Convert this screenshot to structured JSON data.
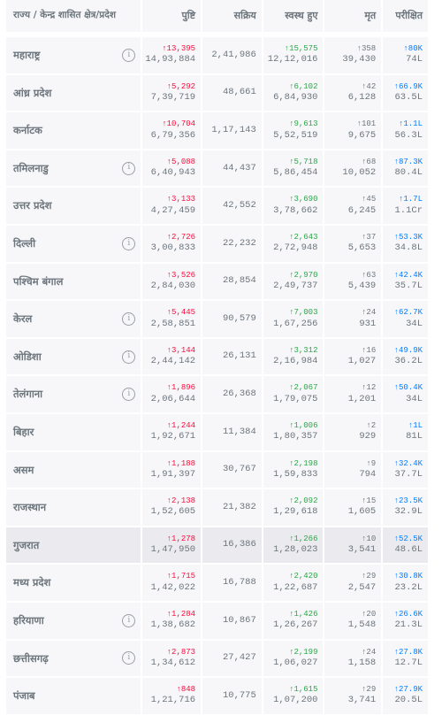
{
  "header": {
    "state": "राज्य / केन्द्र शासित क्षेत्र/प्रदेश",
    "confirmed": "पुष्टि",
    "active": "सक्रिय",
    "recovered": "स्वस्थ हुए",
    "deceased": "मृत",
    "tested": "परीक्षित"
  },
  "rows": [
    {
      "state": "महाराष्ट्र",
      "info": true,
      "conf_d": "↑13,395",
      "conf": "14,93,884",
      "active": "2,41,986",
      "rec_d": "↑15,575",
      "rec": "12,12,016",
      "dec_d": "↑358",
      "dec": "39,430",
      "test_d": "↑80K",
      "test": "74L"
    },
    {
      "state": "आंध्र प्रदेश",
      "info": false,
      "conf_d": "↑5,292",
      "conf": "7,39,719",
      "active": "48,661",
      "rec_d": "↑6,102",
      "rec": "6,84,930",
      "dec_d": "↑42",
      "dec": "6,128",
      "test_d": "↑66.9K",
      "test": "63.5L"
    },
    {
      "state": "कर्नाटक",
      "info": false,
      "conf_d": "↑10,704",
      "conf": "6,79,356",
      "active": "1,17,143",
      "rec_d": "↑9,613",
      "rec": "5,52,519",
      "dec_d": "↑101",
      "dec": "9,675",
      "test_d": "↑1.1L",
      "test": "56.3L"
    },
    {
      "state": "तमिलनाडु",
      "info": true,
      "conf_d": "↑5,088",
      "conf": "6,40,943",
      "active": "44,437",
      "rec_d": "↑5,718",
      "rec": "5,86,454",
      "dec_d": "↑68",
      "dec": "10,052",
      "test_d": "↑87.3K",
      "test": "80.4L"
    },
    {
      "state": "उत्तर प्रदेश",
      "info": false,
      "conf_d": "↑3,133",
      "conf": "4,27,459",
      "active": "42,552",
      "rec_d": "↑3,690",
      "rec": "3,78,662",
      "dec_d": "↑45",
      "dec": "6,245",
      "test_d": "↑1.7L",
      "test": "1.1Cr"
    },
    {
      "state": "दिल्ली",
      "info": true,
      "conf_d": "↑2,726",
      "conf": "3,00,833",
      "active": "22,232",
      "rec_d": "↑2,643",
      "rec": "2,72,948",
      "dec_d": "↑37",
      "dec": "5,653",
      "test_d": "↑53.3K",
      "test": "34.8L"
    },
    {
      "state": "पश्चिम बंगाल",
      "info": false,
      "conf_d": "↑3,526",
      "conf": "2,84,030",
      "active": "28,854",
      "rec_d": "↑2,970",
      "rec": "2,49,737",
      "dec_d": "↑63",
      "dec": "5,439",
      "test_d": "↑42.4K",
      "test": "35.7L"
    },
    {
      "state": "केरल",
      "info": true,
      "conf_d": "↑5,445",
      "conf": "2,58,851",
      "active": "90,579",
      "rec_d": "↑7,003",
      "rec": "1,67,256",
      "dec_d": "↑24",
      "dec": "931",
      "test_d": "↑62.7K",
      "test": "34L"
    },
    {
      "state": "ओडिशा",
      "info": true,
      "conf_d": "↑3,144",
      "conf": "2,44,142",
      "active": "26,131",
      "rec_d": "↑3,312",
      "rec": "2,16,984",
      "dec_d": "↑16",
      "dec": "1,027",
      "test_d": "↑49.9K",
      "test": "36.2L"
    },
    {
      "state": "तेलंगाना",
      "info": true,
      "conf_d": "↑1,896",
      "conf": "2,06,644",
      "active": "26,368",
      "rec_d": "↑2,067",
      "rec": "1,79,075",
      "dec_d": "↑12",
      "dec": "1,201",
      "test_d": "↑50.4K",
      "test": "34L"
    },
    {
      "state": "बिहार",
      "info": false,
      "conf_d": "↑1,244",
      "conf": "1,92,671",
      "active": "11,384",
      "rec_d": "↑1,006",
      "rec": "1,80,357",
      "dec_d": "↑2",
      "dec": "929",
      "test_d": "↑1L",
      "test": "81L"
    },
    {
      "state": "असम",
      "info": false,
      "conf_d": "↑1,188",
      "conf": "1,91,397",
      "active": "30,767",
      "rec_d": "↑2,198",
      "rec": "1,59,833",
      "dec_d": "↑9",
      "dec": "794",
      "test_d": "↑32.4K",
      "test": "37.7L"
    },
    {
      "state": "राजस्थान",
      "info": false,
      "conf_d": "↑2,138",
      "conf": "1,52,605",
      "active": "21,382",
      "rec_d": "↑2,092",
      "rec": "1,29,618",
      "dec_d": "↑15",
      "dec": "1,605",
      "test_d": "↑23.5K",
      "test": "32.9L"
    },
    {
      "state": "गुजरात",
      "info": false,
      "highlight": true,
      "conf_d": "↑1,278",
      "conf": "1,47,950",
      "active": "16,386",
      "rec_d": "↑1,266",
      "rec": "1,28,023",
      "dec_d": "↑10",
      "dec": "3,541",
      "test_d": "↑52.5K",
      "test": "48.6L"
    },
    {
      "state": "मध्य प्रदेश",
      "info": false,
      "conf_d": "↑1,715",
      "conf": "1,42,022",
      "active": "16,788",
      "rec_d": "↑2,420",
      "rec": "1,22,687",
      "dec_d": "↑29",
      "dec": "2,547",
      "test_d": "↑30.8K",
      "test": "23.2L"
    },
    {
      "state": "हरियाणा",
      "info": true,
      "conf_d": "↑1,284",
      "conf": "1,38,682",
      "active": "10,867",
      "rec_d": "↑1,426",
      "rec": "1,26,267",
      "dec_d": "↑20",
      "dec": "1,548",
      "test_d": "↑26.6K",
      "test": "21.3L"
    },
    {
      "state": "छत्तीसगढ़",
      "info": true,
      "conf_d": "↑2,873",
      "conf": "1,34,612",
      "active": "27,427",
      "rec_d": "↑2,199",
      "rec": "1,06,027",
      "dec_d": "↑24",
      "dec": "1,158",
      "test_d": "↑27.8K",
      "test": "12.7L"
    },
    {
      "state": "पंजाब",
      "info": false,
      "conf_d": "↑848",
      "conf": "1,21,716",
      "active": "10,775",
      "rec_d": "↑1,615",
      "rec": "1,07,200",
      "dec_d": "↑29",
      "dec": "3,741",
      "test_d": "↑27.9K",
      "test": "20.5L"
    }
  ],
  "colors": {
    "confirmed_delta": "#ff073a",
    "recovered_delta": "#28a745",
    "deceased_delta": "#6c757d",
    "tested_delta": "#007bff"
  },
  "icons": {
    "info": "info-circle-icon"
  }
}
